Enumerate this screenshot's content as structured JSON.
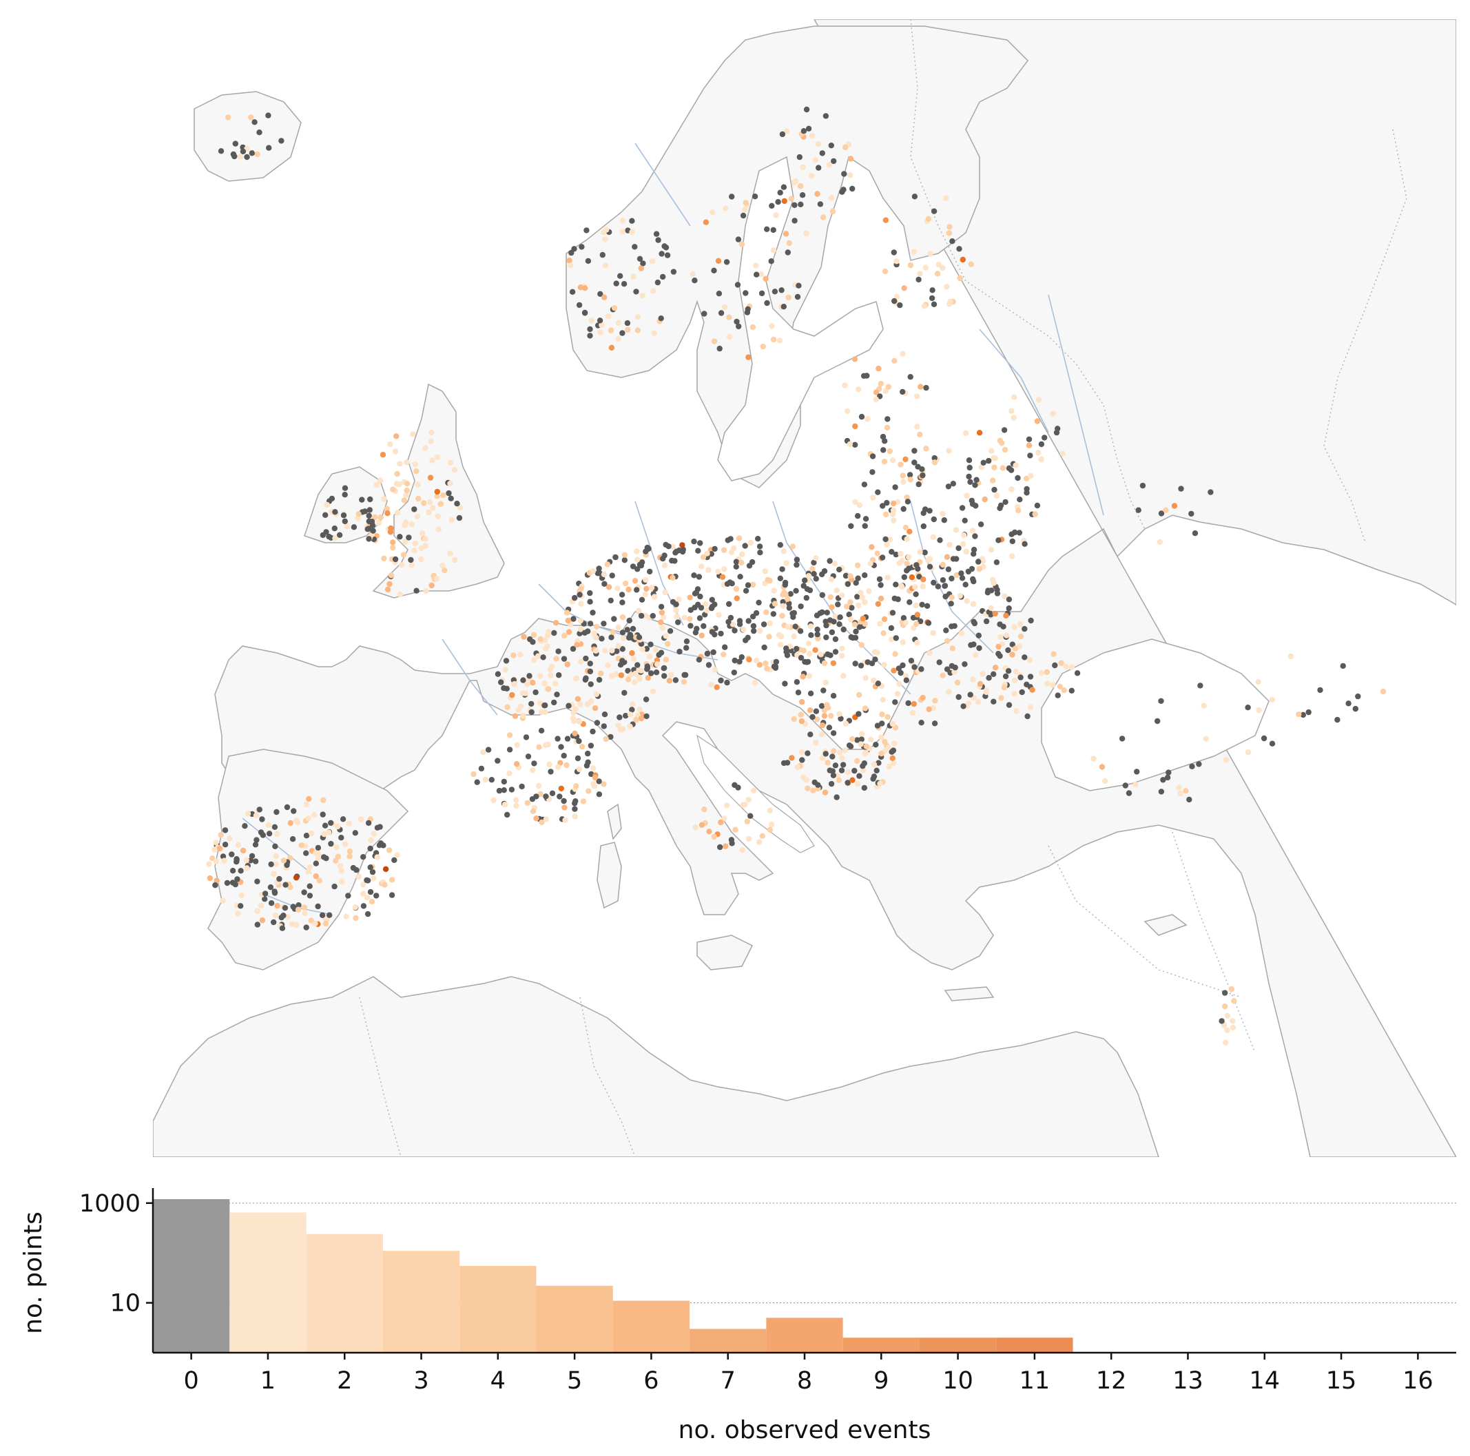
{
  "map": {
    "land_color": "#f7f7f7",
    "coast_color": "#a6a6a6",
    "river_color": "#a8c0dc",
    "zero_event_color": "#595959",
    "event_colors": [
      "#fde3c8",
      "#fdcfa5",
      "#fbb580",
      "#f4954f",
      "#e86f1f",
      "#c84508"
    ],
    "legend": "none"
  },
  "chart_data": {
    "type": "bar",
    "xlabel": "no. observed events",
    "ylabel": "no. points",
    "yscale": "log",
    "ylim": [
      1,
      2000
    ],
    "ytick_labels": [
      "1000",
      "10"
    ],
    "grid": "horizontal dotted at 10 and 1000",
    "categories": [
      "0",
      "1",
      "2",
      "3",
      "4",
      "5",
      "6",
      "7",
      "8",
      "9",
      "10",
      "11",
      "12",
      "13",
      "14",
      "15",
      "16"
    ],
    "values": [
      1200,
      650,
      240,
      110,
      55,
      22,
      11,
      3,
      5,
      2,
      2,
      2,
      0,
      1,
      0,
      0,
      1
    ],
    "colors": [
      "#999999",
      "#fde5cc",
      "#fcdcbd",
      "#fbd3ad",
      "#facb9f",
      "#f9c291",
      "#f8b985",
      "#f5ad78",
      "#f4a66e",
      "#f19d64",
      "#ee955c",
      "#eb8d55",
      "#e8844e",
      "#e47c48",
      "#e07343",
      "#dc6b3e",
      "#d9653a"
    ]
  }
}
